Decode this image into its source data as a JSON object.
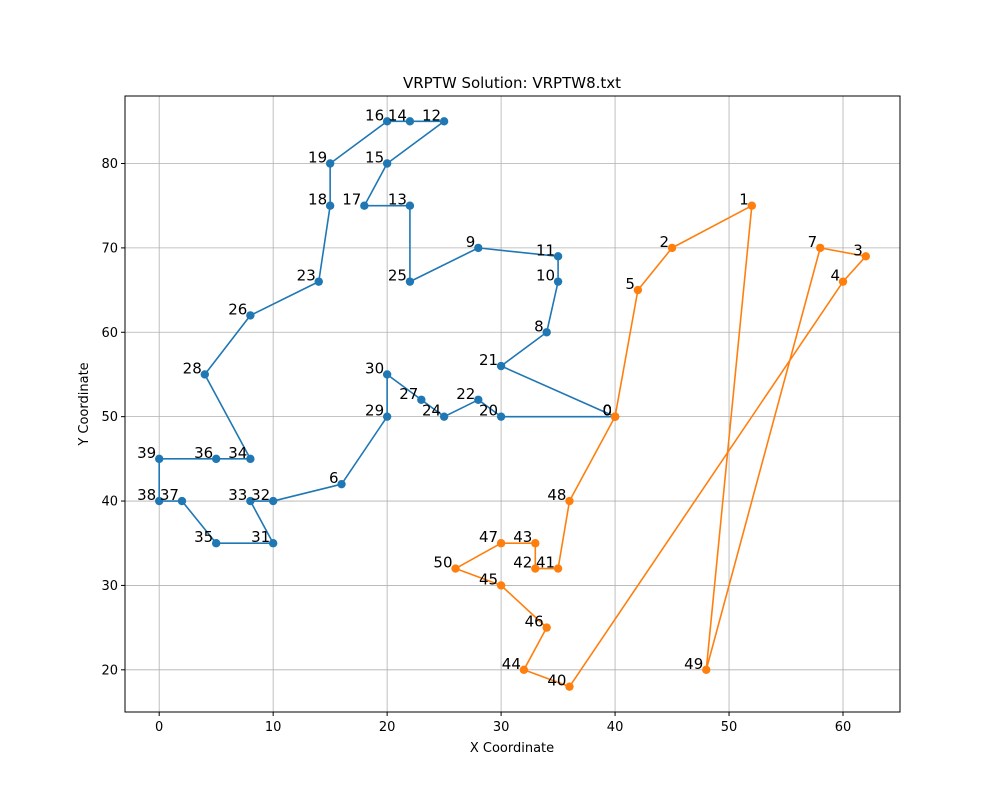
{
  "chart_data": {
    "type": "line",
    "title": "VRPTW Solution: VRPTW8.txt",
    "xlabel": "X Coordinate",
    "ylabel": "Y Coordinate",
    "xlim": [
      -3,
      65
    ],
    "ylim": [
      15,
      88
    ],
    "xticks": [
      0,
      10,
      20,
      30,
      40,
      50,
      60
    ],
    "yticks": [
      20,
      30,
      40,
      50,
      60,
      70,
      80
    ],
    "grid": true,
    "series": [
      {
        "color": "#1f77b4",
        "route": [
          0,
          21,
          8,
          10,
          11,
          9,
          25,
          13,
          17,
          15,
          12,
          14,
          16,
          19,
          18,
          23,
          26,
          28,
          34,
          36,
          39,
          38,
          37,
          35,
          31,
          33,
          32,
          6,
          29,
          30,
          27,
          24,
          22,
          20,
          0
        ],
        "x": [
          40,
          30,
          34,
          35,
          35,
          28,
          22,
          22,
          18,
          20,
          25,
          22,
          20,
          15,
          15,
          14,
          8,
          4,
          8,
          5,
          0,
          0,
          2,
          5,
          10,
          8,
          10,
          16,
          20,
          20,
          23,
          25,
          28,
          30,
          40
        ],
        "y": [
          50,
          56,
          60,
          66,
          69,
          70,
          66,
          75,
          75,
          80,
          85,
          85,
          85,
          80,
          75,
          66,
          62,
          55,
          45,
          45,
          45,
          40,
          40,
          35,
          35,
          40,
          40,
          42,
          50,
          55,
          52,
          50,
          52,
          50,
          50
        ]
      },
      {
        "color": "#ff7f0e",
        "route": [
          0,
          5,
          2,
          1,
          49,
          7,
          3,
          4,
          40,
          44,
          46,
          45,
          50,
          47,
          43,
          42,
          41,
          48,
          0
        ],
        "x": [
          40,
          42,
          45,
          52,
          48,
          58,
          62,
          60,
          36,
          32,
          34,
          30,
          26,
          30,
          33,
          33,
          35,
          36,
          40
        ],
        "y": [
          50,
          65,
          70,
          75,
          20,
          70,
          69,
          66,
          18,
          20,
          25,
          30,
          32,
          35,
          35,
          32,
          32,
          40,
          50
        ]
      }
    ]
  }
}
